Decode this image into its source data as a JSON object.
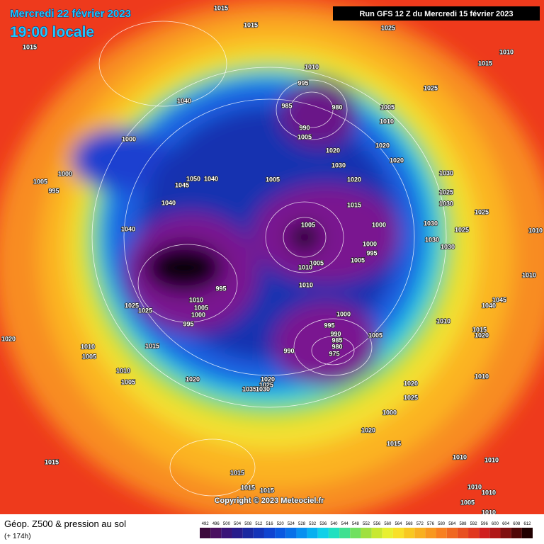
{
  "header": {
    "date": "Mercredi 22 février 2023",
    "time": "19:00 locale",
    "run": "Run GFS 12 Z du Mercredi 15 février 2023"
  },
  "map": {
    "copyright": "Copyright © 2023 Meteociel.fr",
    "isobar_labels": [
      1015,
      1015,
      1025,
      1015,
      1010,
      1015,
      1010,
      995,
      1025,
      1040,
      985,
      980,
      1005,
      1010,
      990,
      1005,
      1000,
      1020,
      1020,
      1020,
      1030,
      1000,
      1050,
      1040,
      1005,
      1020,
      1030,
      1005,
      995,
      1045,
      1025,
      1015,
      1040,
      1030,
      1025,
      1030,
      1000,
      1005,
      1025,
      1010,
      1040,
      1000,
      1030,
      1030,
      995,
      1005,
      1005,
      1010,
      1010,
      1010,
      995,
      1010,
      1025,
      1025,
      1005,
      1000,
      1000,
      1045,
      1040,
      1015,
      1020,
      995,
      1010,
      995,
      990,
      1005,
      985,
      1020,
      980,
      1015,
      1010,
      990,
      975,
      1005,
      1010,
      1010,
      1020,
      1020,
      1020,
      1005,
      1025,
      1035,
      1030,
      1025,
      1000,
      1020,
      1015,
      1010,
      1010,
      1015,
      1015,
      1015,
      1015,
      1010,
      1010,
      1005,
      1010
    ]
  },
  "footer": {
    "title": "Géop. Z500 & pression au sol",
    "lead": "(+ 174h)"
  },
  "legend": {
    "values": [
      492,
      496,
      500,
      504,
      508,
      512,
      516,
      520,
      524,
      528,
      532,
      536,
      540,
      544,
      548,
      552,
      556,
      560,
      564,
      568,
      572,
      576,
      580,
      584,
      588,
      592,
      596,
      600,
      604,
      608,
      612
    ],
    "colors": [
      "#3c0a3c",
      "#4a1060",
      "#3a1478",
      "#281c8c",
      "#1a28a0",
      "#1434b8",
      "#1044d0",
      "#0a58e0",
      "#0870e8",
      "#0890f0",
      "#08b0f0",
      "#10d0e8",
      "#20e0c0",
      "#40e090",
      "#70e060",
      "#a0e040",
      "#c8e830",
      "#e8f030",
      "#f8e028",
      "#f8c820",
      "#f8b020",
      "#f89820",
      "#f88020",
      "#f06820",
      "#e85020",
      "#e03820",
      "#d02020",
      "#b01818",
      "#801010",
      "#500808",
      "#200000"
    ]
  }
}
